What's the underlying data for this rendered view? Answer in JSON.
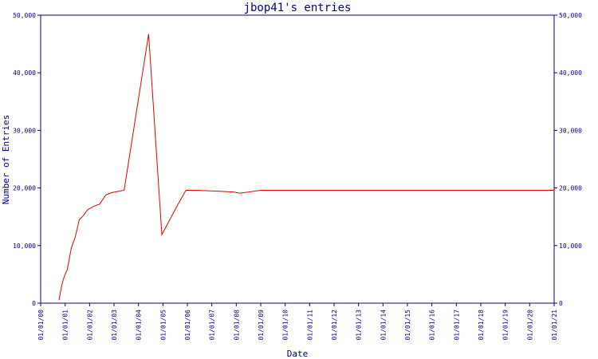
{
  "chart_data": {
    "type": "line",
    "title": "jbop41's entries",
    "xlabel": "Date",
    "ylabel": "Number of Entries",
    "categories": [
      "01/01/00",
      "01/01/01",
      "01/01/02",
      "01/01/03",
      "01/01/04",
      "01/01/05",
      "01/01/06",
      "01/01/07",
      "01/01/08",
      "01/01/09",
      "01/01/10",
      "01/01/11",
      "01/01/12",
      "01/01/13",
      "01/01/14",
      "01/01/15",
      "01/01/16",
      "01/01/17",
      "01/01/18",
      "01/01/19",
      "01/01/20",
      "01/01/21"
    ],
    "yticks": [
      "0",
      "10,000",
      "20,000",
      "30,000",
      "40,000",
      "50,000"
    ],
    "ylim": [
      0,
      50000
    ],
    "grid": false,
    "right_axis": true,
    "colors": {
      "axis": "#000080",
      "series": "#e00000",
      "text": "#000080"
    },
    "series": [
      {
        "x": [
          "2000-10-01",
          "2000-11-01",
          "2000-12-01",
          "2001-01-01",
          "2001-02-01",
          "2001-03-01",
          "2001-04-01",
          "2001-05-01",
          "2001-06-01",
          "2001-08-01",
          "2001-10-01",
          "2001-12-01",
          "2002-03-01",
          "2002-06-01",
          "2002-09-01",
          "2002-12-01",
          "2003-03-01",
          "2003-06-01",
          "2004-06-01",
          "2004-12-15",
          "2005-08-01",
          "2005-12-10",
          "2006-06-01",
          "2006-12-01",
          "2007-06-01",
          "2007-12-01",
          "2008-01-01",
          "2008-03-01",
          "2009-01-01",
          "2010-01-01",
          "2012-01-01",
          "2015-01-01",
          "2018-01-01",
          "2020-06-01",
          "2021-01-01"
        ],
        "y": [
          500,
          2500,
          4000,
          5000,
          5800,
          7500,
          9500,
          10500,
          11500,
          14500,
          15200,
          16200,
          16800,
          17200,
          18800,
          19200,
          19400,
          19600,
          46700,
          11900,
          16900,
          19600,
          19600,
          19500,
          19400,
          19300,
          19200,
          19100,
          19600,
          19600,
          19600,
          19600,
          19600,
          19600,
          19600
        ]
      }
    ]
  }
}
